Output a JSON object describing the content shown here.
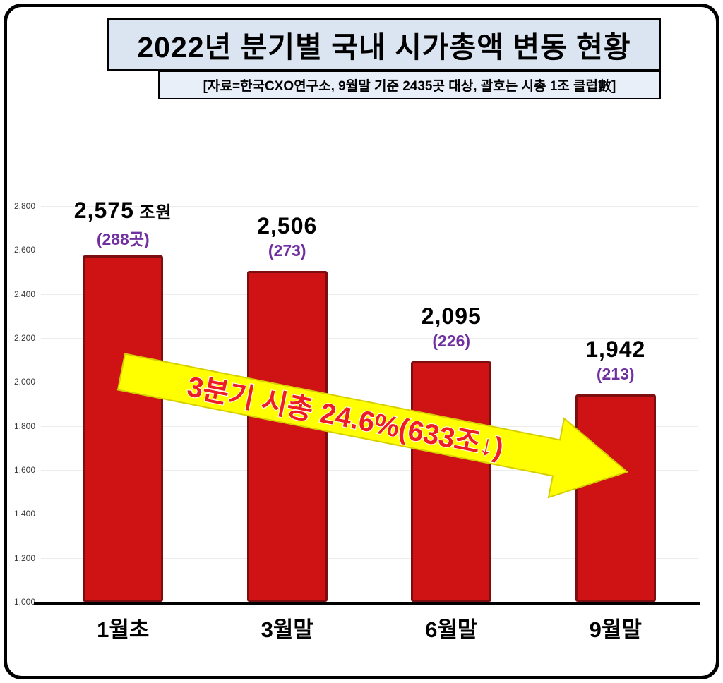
{
  "header": {
    "title": "2022년 분기별 국내 시가총액 변동 현황",
    "subtitle": "[자료=한국CXO연구소, 9월말 기준 2435곳 대상, 괄호는 시총 1조 클럽數]"
  },
  "chart_data": {
    "type": "bar",
    "title": "2022년 분기별 국내 시가총액 변동 현황",
    "source_note": "[자료=한국CXO연구소, 9월말 기준 2435곳 대상, 괄호는 시총 1조 클럽數]",
    "categories": [
      "1월초",
      "3월말",
      "6월말",
      "9월말"
    ],
    "values": [
      2575,
      2506,
      2095,
      1942
    ],
    "value_labels": [
      "2,575",
      "2,506",
      "2,095",
      "1,942"
    ],
    "unit_label": "조원",
    "club_counts": [
      "(288곳)",
      "(273)",
      "(226)",
      "(213)"
    ],
    "ylim": [
      1000,
      2800
    ],
    "ytick_step": 200,
    "ytick_labels": [
      "1,000",
      "1,200",
      "1,400",
      "1,600",
      "1,800",
      "2,000",
      "2,200",
      "2,400",
      "2,600",
      "2,800"
    ],
    "grid": true,
    "legend": "none",
    "annotation": "3분기 시총 24.6%(633조↓)",
    "colors": {
      "bar_fill": "#cf1315",
      "bar_border": "#7e0d10",
      "count_text": "#7030a0",
      "arrow_fill": "#ffff00",
      "arrow_border": "#d6ce00",
      "annotation_text": "#ee1c25",
      "title_bg": "#dbe5f1",
      "subtitle_bg": "#e9eff8"
    }
  }
}
